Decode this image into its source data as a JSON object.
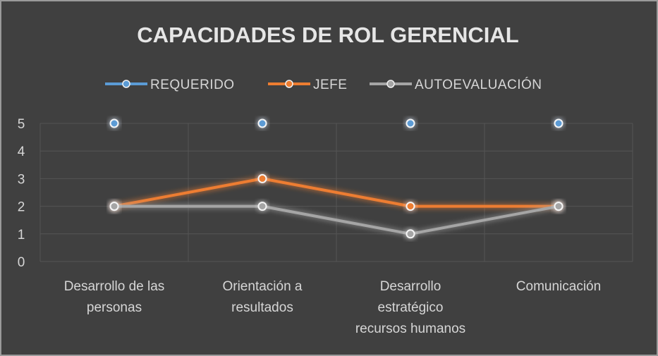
{
  "chart_data": {
    "type": "line",
    "title": "CAPACIDADES DE ROL GERENCIAL",
    "categories": [
      [
        "Desarrollo de las",
        "personas"
      ],
      [
        "Orientación a",
        "resultados"
      ],
      [
        "Desarrollo",
        "estratégico",
        "recursos humanos"
      ],
      [
        "Comunicación"
      ]
    ],
    "y_ticks": [
      "0",
      "1",
      "2",
      "3",
      "4",
      "5"
    ],
    "ylim": [
      0,
      5
    ],
    "grid": true,
    "legend_position": "top",
    "series": [
      {
        "name": "REQUERIDO",
        "values": [
          5,
          5,
          5,
          5
        ],
        "color": "#5b9bd5"
      },
      {
        "name": "JEFE",
        "values": [
          2,
          3,
          2,
          2
        ],
        "color": "#ed7d31"
      },
      {
        "name": "AUTOEVALUACIÓN",
        "values": [
          2,
          2,
          1,
          2
        ],
        "color": "#a5a5a5"
      }
    ]
  }
}
